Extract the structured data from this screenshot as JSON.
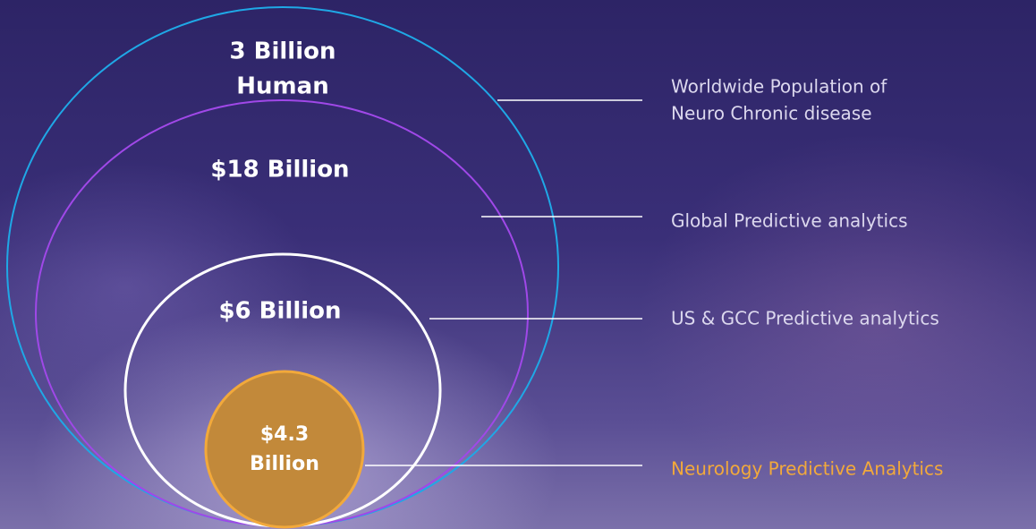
{
  "nodes": [
    {
      "value_lines": [
        "3 Billion",
        "Human"
      ],
      "description_lines": [
        "Worldwide Population of",
        "Neuro Chronic disease"
      ]
    },
    {
      "value_lines": [
        "$18 Billion"
      ],
      "description_lines": [
        "Global Predictive analytics"
      ]
    },
    {
      "value_lines": [
        "$6 Billion"
      ],
      "description_lines": [
        "US & GCC Predictive analytics"
      ]
    },
    {
      "value_lines": [
        "$4.3",
        "Billion"
      ],
      "description_lines": [
        "Neurology Predictive Analytics"
      ]
    }
  ]
}
